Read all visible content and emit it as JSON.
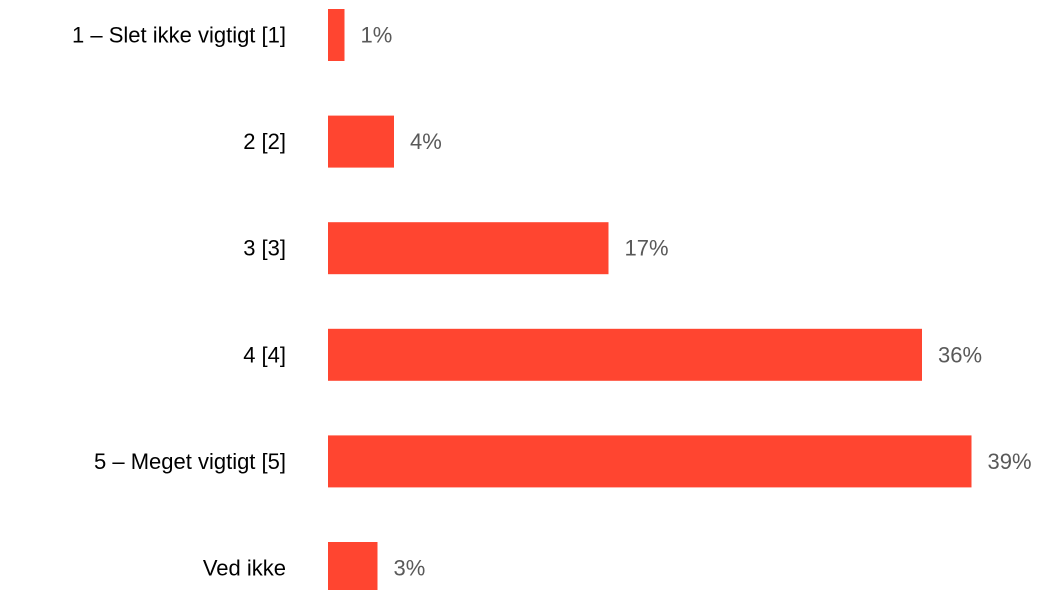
{
  "chart_data": {
    "type": "bar",
    "orientation": "horizontal",
    "categories": [
      "1 – Slet ikke vigtigt [1]",
      "2 [2]",
      "3 [3]",
      "4 [4]",
      "5 – Meget vigtigt [5]",
      "Ved ikke"
    ],
    "values": [
      1,
      4,
      17,
      36,
      39,
      3
    ],
    "value_labels": [
      "1%",
      "4%",
      "17%",
      "36%",
      "39%",
      "3%"
    ],
    "unit": "%",
    "xlim": [
      0,
      40
    ],
    "grid": false,
    "legend": "none",
    "colors": {
      "bar": "#ff4530",
      "category_label": "#000000",
      "value_label": "#595959"
    }
  }
}
